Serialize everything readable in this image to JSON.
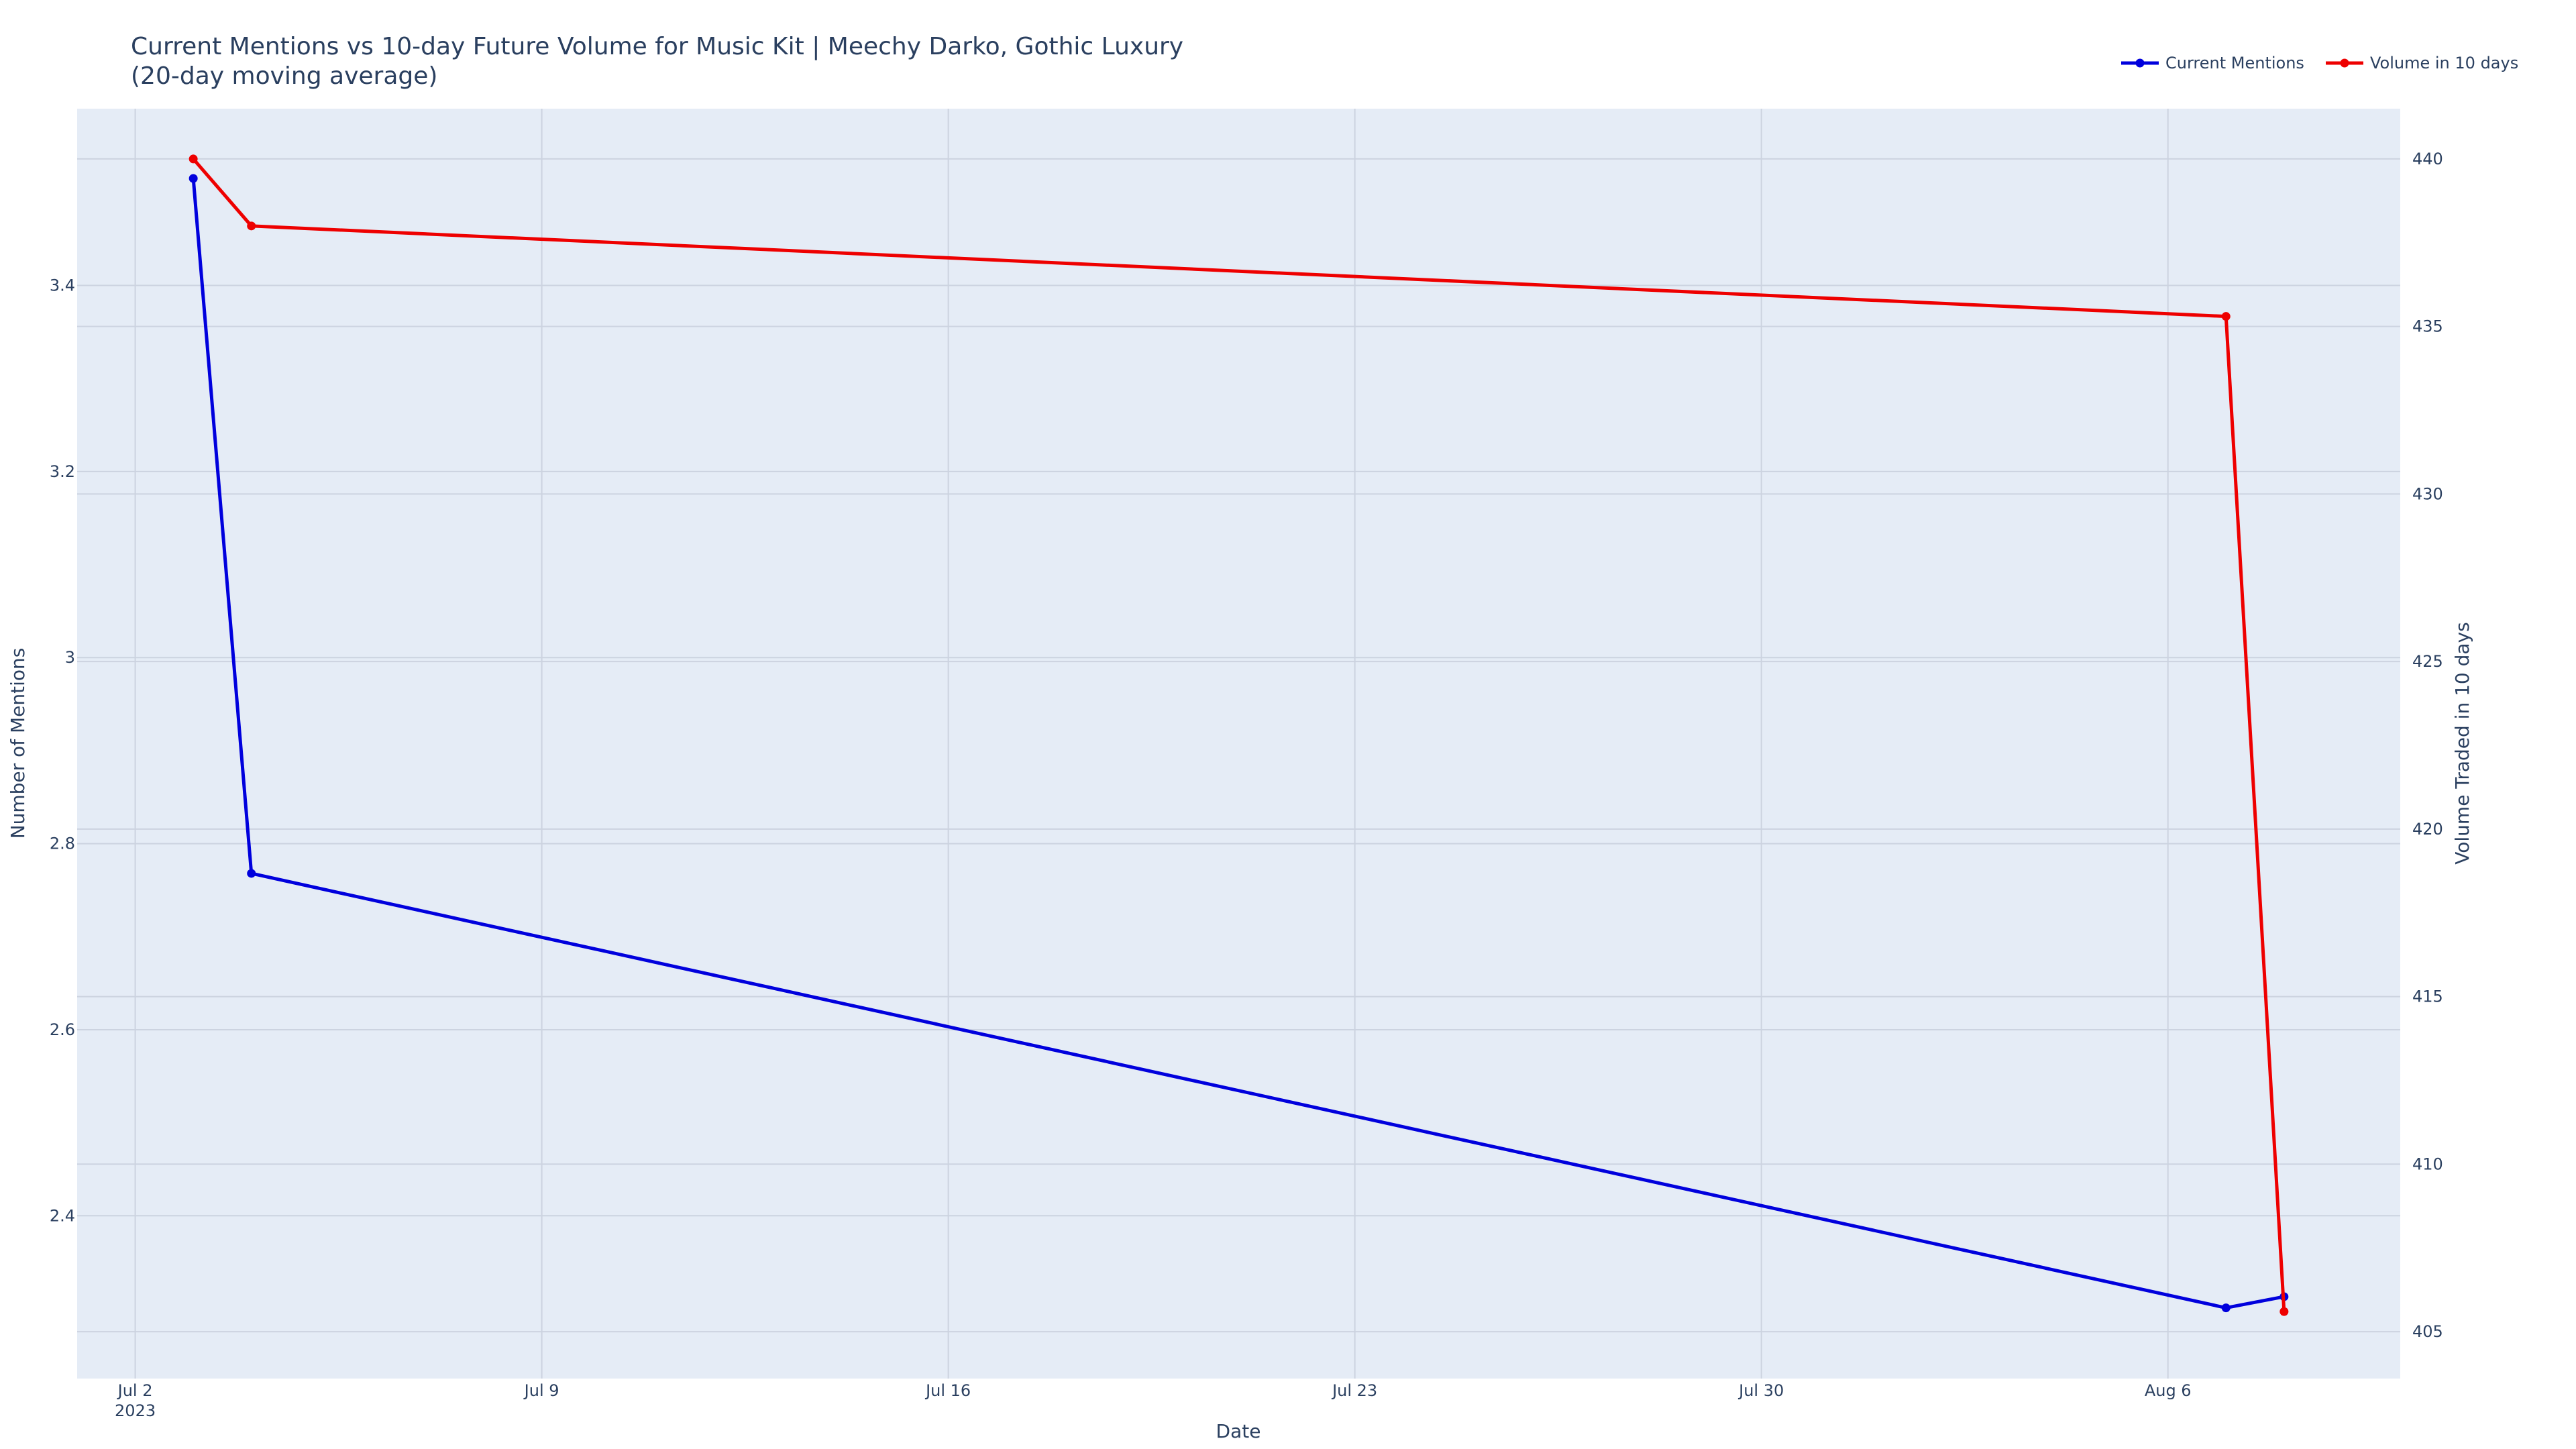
{
  "chart_data": {
    "type": "line",
    "title_line1": "Current Mentions vs 10-day Future Volume for Music Kit | Meechy Darko, Gothic Luxury",
    "title_line2": "(20-day moving average)",
    "xlabel": "Date",
    "ylabel_left": "Number of Mentions",
    "ylabel_right": "Volume Traded in 10 days",
    "x_ticks": [
      {
        "date": "2023-07-02",
        "line1": "Jul 2",
        "line2": "2023"
      },
      {
        "date": "2023-07-09",
        "line1": "Jul 9",
        "line2": ""
      },
      {
        "date": "2023-07-16",
        "line1": "Jul 16",
        "line2": ""
      },
      {
        "date": "2023-07-23",
        "line1": "Jul 23",
        "line2": ""
      },
      {
        "date": "2023-07-30",
        "line1": "Jul 30",
        "line2": ""
      },
      {
        "date": "2023-08-06",
        "line1": "Aug 6",
        "line2": ""
      }
    ],
    "xlim": [
      "2023-07-01",
      "2023-08-10"
    ],
    "y_left_ticks": [
      "2.4",
      "2.6",
      "2.8",
      "3",
      "3.2",
      "3.4"
    ],
    "ylim_left": [
      2.225,
      3.59
    ],
    "y_right_ticks": [
      "405",
      "410",
      "415",
      "420",
      "425",
      "430",
      "435",
      "440"
    ],
    "ylim_right": [
      403.6,
      441.5
    ],
    "grid": true,
    "legend_position": "top-right",
    "series": [
      {
        "name": "Current Mentions",
        "color": "#0000dd",
        "axis": "left",
        "points": [
          {
            "x": "2023-07-03",
            "y": 3.515
          },
          {
            "x": "2023-07-04",
            "y": 2.768
          },
          {
            "x": "2023-08-07",
            "y": 2.301
          },
          {
            "x": "2023-08-08",
            "y": 2.313
          }
        ]
      },
      {
        "name": "Volume in 10 days",
        "color": "#ee0000",
        "axis": "right",
        "points": [
          {
            "x": "2023-07-03",
            "y": 440.0
          },
          {
            "x": "2023-07-04",
            "y": 438.0
          },
          {
            "x": "2023-08-07",
            "y": 435.3
          },
          {
            "x": "2023-08-08",
            "y": 405.6
          }
        ]
      }
    ]
  }
}
